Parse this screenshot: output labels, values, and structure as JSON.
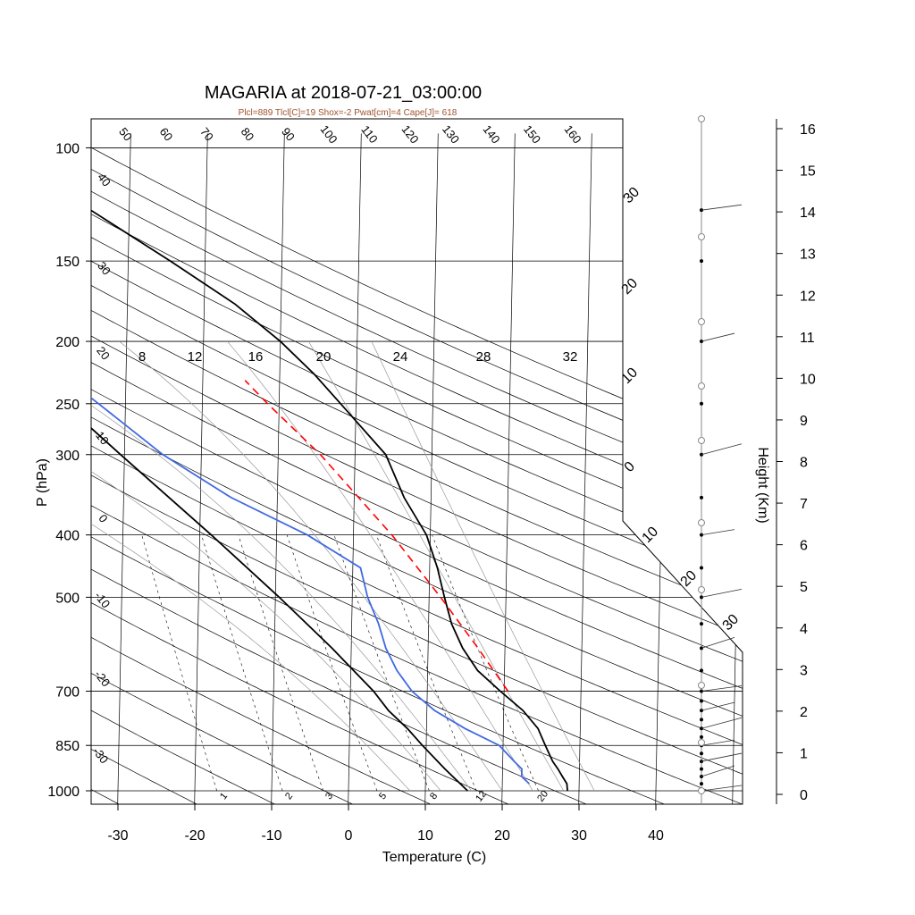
{
  "chart_data": {
    "type": "line",
    "title": "MAGARIA at 2018-07-21_03:00:00",
    "subtitle": "Plcl=889 Tlcl[C]=19 Shox=-2 Pwat[cm]=4 Cape[J]= 618",
    "xlabel": "Temperature (C)",
    "ylabel": "P (hPa)",
    "y2label": "Height (Km)",
    "x_ticks": [
      "-30",
      "-20",
      "-10",
      "0",
      "10",
      "20",
      "30",
      "40"
    ],
    "y_ticks": [
      "100",
      "150",
      "200",
      "250",
      "300",
      "400",
      "500",
      "700",
      "850",
      "1000"
    ],
    "height_ticks": [
      "0",
      "1",
      "2",
      "3",
      "4",
      "5",
      "6",
      "7",
      "8",
      "9",
      "10",
      "11",
      "12",
      "13",
      "14",
      "15",
      "16"
    ],
    "xlim": [
      -34,
      51
    ],
    "ylim": [
      1030,
      100
    ],
    "y_scale": "log",
    "dry_adiabat_labels": [
      "50",
      "60",
      "70",
      "80",
      "90",
      "100",
      "110",
      "120",
      "130",
      "140",
      "150",
      "160"
    ],
    "moist_adiabat_labels": [
      "8",
      "12",
      "16",
      "20",
      "24",
      "28",
      "32"
    ],
    "mixing_ratio_labels": [
      "1",
      "2",
      "3",
      "5",
      "8",
      "12",
      "20"
    ],
    "isotherm_left_labels": [
      "40",
      "30",
      "20",
      "10",
      "0",
      "-10",
      "-20",
      "-30"
    ],
    "isotherm_right_labels": [
      "30",
      "20",
      "10",
      "0",
      "10",
      "20",
      "30"
    ],
    "series": [
      {
        "color": "#000000",
        "p": [
          1000,
          975,
          950,
          925,
          900,
          850,
          800,
          750,
          700,
          650,
          600,
          550,
          500,
          450,
          400,
          350,
          300,
          250,
          225,
          200,
          175,
          150,
          125,
          110
        ],
        "t": [
          28.5,
          28.4,
          27.8,
          27.2,
          26.5,
          25.5,
          24.5,
          22.5,
          19.5,
          16.5,
          14.5,
          13.0,
          12.0,
          11.0,
          9.5,
          6.5,
          4.0,
          -2.0,
          -5.5,
          -10.0,
          -16.0,
          -24.5,
          -35.0,
          -41.5
        ]
      },
      {
        "color": "#4169e1",
        "p": [
          975,
          950,
          925,
          900,
          850,
          800,
          750,
          700,
          650,
          600,
          550,
          500,
          450,
          400,
          350,
          300,
          250,
          225,
          200,
          175,
          150,
          125,
          110
        ],
        "t": [
          23.5,
          22.5,
          22.5,
          21.5,
          19.5,
          15.0,
          11.0,
          8.0,
          6.0,
          4.5,
          3.5,
          2.0,
          1.0,
          -6.0,
          -16.0,
          -25.0,
          -33.5,
          -38.5,
          -45.0,
          -51.0,
          -60.5,
          -70.5,
          -64.0
        ]
      },
      {
        "color": "#000000",
        "p": [
          1000,
          925,
          850,
          800,
          750,
          700,
          600,
          500,
          400,
          300,
          250,
          200,
          150,
          100
        ],
        "t": [
          15.5,
          12.5,
          9.5,
          7.5,
          5.0,
          3.0,
          -2.5,
          -9.5,
          -18.5,
          -30.5,
          -38.0,
          -48.0,
          -63.0,
          -86.0
        ]
      },
      {
        "color": "#ff0000",
        "p": [
          700,
          600,
          500,
          400,
          300,
          250,
          230
        ],
        "t": [
          20.5,
          16.5,
          11.5,
          5.0,
          -4.5,
          -11.5,
          -14.5
        ]
      }
    ],
    "wind_dots_p": [
      1000,
      975,
      950,
      925,
      900,
      875,
      850,
      825,
      800,
      775,
      750,
      725,
      700,
      650,
      600,
      550,
      500,
      450,
      400,
      350,
      300,
      250,
      200,
      150,
      125
    ]
  }
}
